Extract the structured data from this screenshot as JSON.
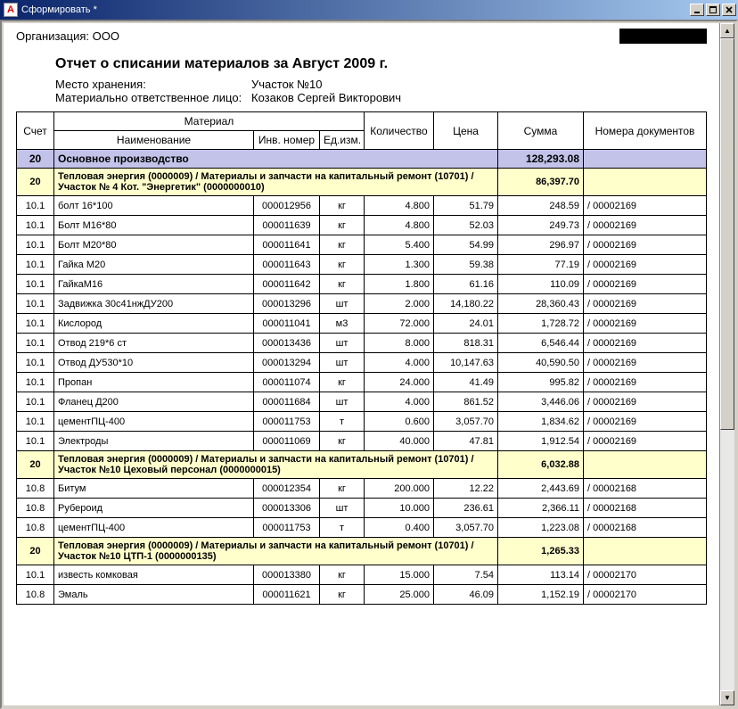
{
  "window": {
    "title": "Сформировать  *",
    "app_glyph": "А"
  },
  "header": {
    "org_label": "Организация:",
    "org_value": "ООО",
    "title": "Отчет о списании материалов за Август 2009 г.",
    "storage_label": "Место хранения:",
    "storage_value": "Участок №10",
    "mol_label": "Материально ответственное лицо:",
    "mol_value": "Козаков Сергей Викторович"
  },
  "columns": {
    "account": "Счет",
    "material_group": "Материал",
    "name": "Наименование",
    "inv": "Инв. номер",
    "unit": "Ед.изм.",
    "qty": "Количество",
    "price": "Цена",
    "sum": "Сумма",
    "docs": "Номера документов"
  },
  "section": {
    "account": "20",
    "name": "Основное производство",
    "total": "128,293.08"
  },
  "groups": [
    {
      "account": "20",
      "title": "Тепловая энергия (0000009) / Материалы и запчасти на капитальный ремонт (10701) / Участок № 4 Кот. \"Энергетик\" (0000000010)",
      "subtotal": "86,397.70",
      "rows": [
        {
          "acct": "10.1",
          "name": "болт 16*100",
          "inv": "000012956",
          "unit": "кг",
          "qty": "4.800",
          "price": "51.79",
          "sum": "248.59",
          "docs": "/ 00002169"
        },
        {
          "acct": "10.1",
          "name": "Болт М16*80",
          "inv": "000011639",
          "unit": "кг",
          "qty": "4.800",
          "price": "52.03",
          "sum": "249.73",
          "docs": "/ 00002169"
        },
        {
          "acct": "10.1",
          "name": "Болт М20*80",
          "inv": "000011641",
          "unit": "кг",
          "qty": "5.400",
          "price": "54.99",
          "sum": "296.97",
          "docs": "/ 00002169"
        },
        {
          "acct": "10.1",
          "name": "Гайка М20",
          "inv": "000011643",
          "unit": "кг",
          "qty": "1.300",
          "price": "59.38",
          "sum": "77.19",
          "docs": "/ 00002169"
        },
        {
          "acct": "10.1",
          "name": "ГайкаМ16",
          "inv": "000011642",
          "unit": "кг",
          "qty": "1.800",
          "price": "61.16",
          "sum": "110.09",
          "docs": "/ 00002169"
        },
        {
          "acct": "10.1",
          "name": "Задвижка 30с41нжДУ200",
          "inv": "000013296",
          "unit": "шт",
          "qty": "2.000",
          "price": "14,180.22",
          "sum": "28,360.43",
          "docs": "/ 00002169"
        },
        {
          "acct": "10.1",
          "name": "Кислород",
          "inv": "000011041",
          "unit": "м3",
          "qty": "72.000",
          "price": "24.01",
          "sum": "1,728.72",
          "docs": "/ 00002169"
        },
        {
          "acct": "10.1",
          "name": "Отвод 219*6 ст",
          "inv": "000013436",
          "unit": "шт",
          "qty": "8.000",
          "price": "818.31",
          "sum": "6,546.44",
          "docs": "/ 00002169"
        },
        {
          "acct": "10.1",
          "name": "Отвод ДУ530*10",
          "inv": "000013294",
          "unit": "шт",
          "qty": "4.000",
          "price": "10,147.63",
          "sum": "40,590.50",
          "docs": "/ 00002169"
        },
        {
          "acct": "10.1",
          "name": "Пропан",
          "inv": "000011074",
          "unit": "кг",
          "qty": "24.000",
          "price": "41.49",
          "sum": "995.82",
          "docs": "/ 00002169"
        },
        {
          "acct": "10.1",
          "name": "Фланец Д200",
          "inv": "000011684",
          "unit": "шт",
          "qty": "4.000",
          "price": "861.52",
          "sum": "3,446.06",
          "docs": "/ 00002169"
        },
        {
          "acct": "10.1",
          "name": "цементПЦ-400",
          "inv": "000011753",
          "unit": "т",
          "qty": "0.600",
          "price": "3,057.70",
          "sum": "1,834.62",
          "docs": "/ 00002169"
        },
        {
          "acct": "10.1",
          "name": "Электроды",
          "inv": "000011069",
          "unit": "кг",
          "qty": "40.000",
          "price": "47.81",
          "sum": "1,912.54",
          "docs": "/ 00002169"
        }
      ]
    },
    {
      "account": "20",
      "title": "Тепловая энергия (0000009) / Материалы и запчасти на капитальный ремонт (10701) / Участок №10  Цеховый персонал (0000000015)",
      "subtotal": "6,032.88",
      "rows": [
        {
          "acct": "10.8",
          "name": "Битум",
          "inv": "000012354",
          "unit": "кг",
          "qty": "200.000",
          "price": "12.22",
          "sum": "2,443.69",
          "docs": "/ 00002168"
        },
        {
          "acct": "10.8",
          "name": "Рубероид",
          "inv": "000013306",
          "unit": "шт",
          "qty": "10.000",
          "price": "236.61",
          "sum": "2,366.11",
          "docs": "/ 00002168"
        },
        {
          "acct": "10.8",
          "name": "цементПЦ-400",
          "inv": "000011753",
          "unit": "т",
          "qty": "0.400",
          "price": "3,057.70",
          "sum": "1,223.08",
          "docs": "/ 00002168"
        }
      ]
    },
    {
      "account": "20",
      "title": "Тепловая энергия (0000009) / Материалы и запчасти на капитальный ремонт (10701) / Участок №10 ЦТП-1 (0000000135)",
      "subtotal": "1,265.33",
      "rows": [
        {
          "acct": "10.1",
          "name": "известь комковая",
          "inv": "000013380",
          "unit": "кг",
          "qty": "15.000",
          "price": "7.54",
          "sum": "113.14",
          "docs": "/ 00002170"
        },
        {
          "acct": "10.8",
          "name": "Эмаль",
          "inv": "000011621",
          "unit": "кг",
          "qty": "25.000",
          "price": "46.09",
          "sum": "1,152.19",
          "docs": "/ 00002170"
        }
      ]
    }
  ],
  "colors": {
    "section_bg": "#c3c3ea",
    "group_bg": "#ffffcc",
    "border": "#000000",
    "titlebar_start": "#0a246a",
    "titlebar_end": "#a6caf0",
    "chrome": "#d4d0c8"
  }
}
